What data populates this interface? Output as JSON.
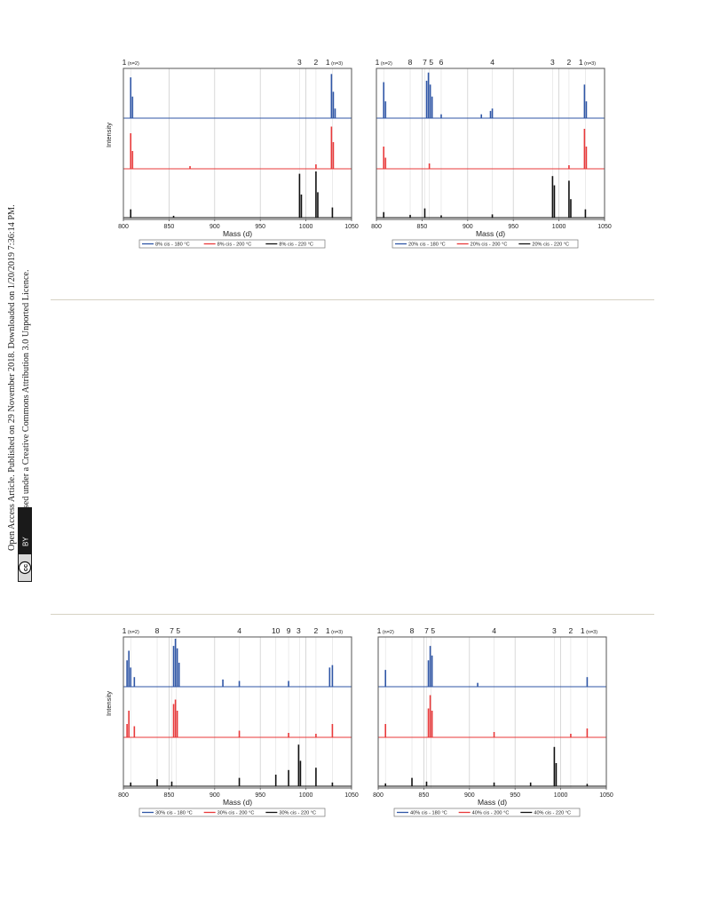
{
  "notice": {
    "line1": "Open Access Article. Published on 29 November 2018. Downloaded on 1/20/2019 7:36:14 PM.",
    "line2": "This article is licensed under a Creative Commons Attribution 3.0 Unported Licence.",
    "badge_cc": "cc",
    "badge_by": "BY"
  },
  "colors": {
    "blue": "#2f56a6",
    "red": "#e8393a",
    "black": "#111111",
    "grid": "#cfcfcf",
    "frame": "#555555"
  },
  "chart_data": [
    {
      "type": "line",
      "ylabel": "Intensity",
      "xlabel": "Mass (d)",
      "xlim": [
        800,
        1050
      ],
      "xticks": [
        "800",
        "850",
        "900",
        "950",
        "1000",
        "1050"
      ],
      "peak_labels": [
        {
          "text": "1",
          "sub": "(n=2)",
          "x": 808
        },
        {
          "text": "3",
          "x": 993
        },
        {
          "text": "2",
          "x": 1011
        },
        {
          "text": "1",
          "sub": "(n=3)",
          "x": 1031
        }
      ],
      "guides": [
        808,
        993,
        1011,
        1029
      ],
      "series": [
        {
          "name": "8% cis - 180 °C",
          "color": "blue",
          "peaks": [
            [
              808,
              0.85
            ],
            [
              810,
              0.45
            ],
            [
              1028,
              0.92
            ],
            [
              1030,
              0.55
            ],
            [
              1032,
              0.2
            ]
          ]
        },
        {
          "name": "8% cis - 200 °C",
          "color": "red",
          "peaks": [
            [
              808,
              0.8
            ],
            [
              810,
              0.4
            ],
            [
              873,
              0.06
            ],
            [
              1011,
              0.1
            ],
            [
              1028,
              0.95
            ],
            [
              1030,
              0.6
            ]
          ]
        },
        {
          "name": "8% cis - 220 °C",
          "color": "black",
          "peaks": [
            [
              808,
              0.18
            ],
            [
              855,
              0.04
            ],
            [
              993,
              0.95
            ],
            [
              995,
              0.5
            ],
            [
              1011,
              1.0
            ],
            [
              1013,
              0.55
            ],
            [
              1029,
              0.22
            ]
          ]
        }
      ]
    },
    {
      "type": "line",
      "ylabel": "",
      "xlabel": "Mass (d)",
      "xlim": [
        800,
        1050
      ],
      "xticks": [
        "800",
        "850",
        "900",
        "950",
        "1000",
        "1050"
      ],
      "peak_labels": [
        {
          "text": "1",
          "sub": "(n=2)",
          "x": 808
        },
        {
          "text": "8",
          "x": 837
        },
        {
          "text": "7",
          "x": 853
        },
        {
          "text": "5",
          "x": 860
        },
        {
          "text": "6",
          "x": 871
        },
        {
          "text": "4",
          "x": 927
        },
        {
          "text": "3",
          "x": 993
        },
        {
          "text": "2",
          "x": 1011
        },
        {
          "text": "1",
          "sub": "(n=3)",
          "x": 1031
        }
      ],
      "guides": [
        808,
        837,
        853,
        858,
        871,
        927,
        993,
        1011,
        1029
      ],
      "series": [
        {
          "name": "20% cis - 180 °C",
          "color": "blue",
          "peaks": [
            [
              808,
              0.75
            ],
            [
              810,
              0.35
            ],
            [
              855,
              0.78
            ],
            [
              857,
              0.95
            ],
            [
              859,
              0.7
            ],
            [
              861,
              0.45
            ],
            [
              871,
              0.08
            ],
            [
              915,
              0.08
            ],
            [
              925,
              0.15
            ],
            [
              927,
              0.2
            ],
            [
              1028,
              0.7
            ],
            [
              1030,
              0.35
            ]
          ]
        },
        {
          "name": "20% cis - 200 °C",
          "color": "red",
          "peaks": [
            [
              808,
              0.5
            ],
            [
              810,
              0.25
            ],
            [
              858,
              0.12
            ],
            [
              1011,
              0.08
            ],
            [
              1028,
              0.9
            ],
            [
              1030,
              0.5
            ]
          ]
        },
        {
          "name": "20% cis - 220 °C",
          "color": "black",
          "peaks": [
            [
              808,
              0.12
            ],
            [
              837,
              0.06
            ],
            [
              853,
              0.2
            ],
            [
              871,
              0.05
            ],
            [
              927,
              0.07
            ],
            [
              993,
              0.9
            ],
            [
              995,
              0.7
            ],
            [
              1011,
              0.8
            ],
            [
              1013,
              0.4
            ],
            [
              1029,
              0.18
            ]
          ]
        }
      ]
    },
    {
      "type": "line",
      "ylabel": "Intensity",
      "xlabel": "Mass (d)",
      "xlim": [
        800,
        1050
      ],
      "xticks": [
        "800",
        "850",
        "900",
        "950",
        "1000",
        "1050"
      ],
      "peak_labels": [
        {
          "text": "1",
          "sub": "(n=2)",
          "x": 808
        },
        {
          "text": "8",
          "x": 837
        },
        {
          "text": "7",
          "x": 853
        },
        {
          "text": "5",
          "x": 860
        },
        {
          "text": "4",
          "x": 927
        },
        {
          "text": "10",
          "x": 967
        },
        {
          "text": "9",
          "x": 981
        },
        {
          "text": "3",
          "x": 992
        },
        {
          "text": "2",
          "x": 1011
        },
        {
          "text": "1",
          "sub": "(n=3)",
          "x": 1031
        }
      ],
      "guides": [
        808,
        837,
        853,
        858,
        927,
        967,
        981,
        993,
        1011,
        1029
      ],
      "series": [
        {
          "name": "30% cis - 180 °C",
          "color": "blue",
          "peaks": [
            [
              804,
              0.55
            ],
            [
              806,
              0.75
            ],
            [
              808,
              0.4
            ],
            [
              812,
              0.2
            ],
            [
              855,
              0.85
            ],
            [
              857,
              1.0
            ],
            [
              859,
              0.8
            ],
            [
              861,
              0.5
            ],
            [
              909,
              0.15
            ],
            [
              927,
              0.12
            ],
            [
              981,
              0.12
            ],
            [
              1026,
              0.4
            ],
            [
              1029,
              0.45
            ]
          ]
        },
        {
          "name": "30% cis - 200 °C",
          "color": "red",
          "peaks": [
            [
              804,
              0.3
            ],
            [
              806,
              0.6
            ],
            [
              812,
              0.25
            ],
            [
              855,
              0.75
            ],
            [
              857,
              0.85
            ],
            [
              859,
              0.6
            ],
            [
              927,
              0.15
            ],
            [
              981,
              0.1
            ],
            [
              1011,
              0.08
            ],
            [
              1029,
              0.3
            ]
          ]
        },
        {
          "name": "30% cis - 220 °C",
          "color": "black",
          "peaks": [
            [
              808,
              0.08
            ],
            [
              837,
              0.15
            ],
            [
              853,
              0.1
            ],
            [
              927,
              0.18
            ],
            [
              967,
              0.25
            ],
            [
              981,
              0.35
            ],
            [
              992,
              0.9
            ],
            [
              994,
              0.55
            ],
            [
              1011,
              0.4
            ],
            [
              1029,
              0.08
            ]
          ]
        }
      ]
    },
    {
      "type": "line",
      "ylabel": "",
      "xlabel": "Mass (d)",
      "xlim": [
        800,
        1050
      ],
      "xticks": [
        "800",
        "850",
        "900",
        "950",
        "1000",
        "1050"
      ],
      "peak_labels": [
        {
          "text": "1",
          "sub": "(n=2)",
          "x": 808
        },
        {
          "text": "8",
          "x": 837
        },
        {
          "text": "7",
          "x": 853
        },
        {
          "text": "5",
          "x": 860
        },
        {
          "text": "4",
          "x": 927
        },
        {
          "text": "3",
          "x": 993
        },
        {
          "text": "2",
          "x": 1011
        },
        {
          "text": "1",
          "sub": "(n=3)",
          "x": 1031
        }
      ],
      "guides": [
        808,
        837,
        853,
        858,
        927,
        993,
        1011,
        1029
      ],
      "series": [
        {
          "name": "40% cis - 180 °C",
          "color": "blue",
          "peaks": [
            [
              808,
              0.35
            ],
            [
              855,
              0.55
            ],
            [
              857,
              0.85
            ],
            [
              859,
              0.65
            ],
            [
              909,
              0.08
            ],
            [
              1029,
              0.2
            ]
          ]
        },
        {
          "name": "40% cis - 200 °C",
          "color": "red",
          "peaks": [
            [
              808,
              0.3
            ],
            [
              855,
              0.65
            ],
            [
              857,
              0.95
            ],
            [
              859,
              0.6
            ],
            [
              927,
              0.12
            ],
            [
              1011,
              0.08
            ],
            [
              1029,
              0.2
            ]
          ]
        },
        {
          "name": "40% cis - 220 °C",
          "color": "black",
          "peaks": [
            [
              808,
              0.06
            ],
            [
              837,
              0.18
            ],
            [
              853,
              0.1
            ],
            [
              927,
              0.08
            ],
            [
              967,
              0.08
            ],
            [
              993,
              0.85
            ],
            [
              995,
              0.5
            ],
            [
              1029,
              0.05
            ]
          ]
        }
      ]
    }
  ]
}
